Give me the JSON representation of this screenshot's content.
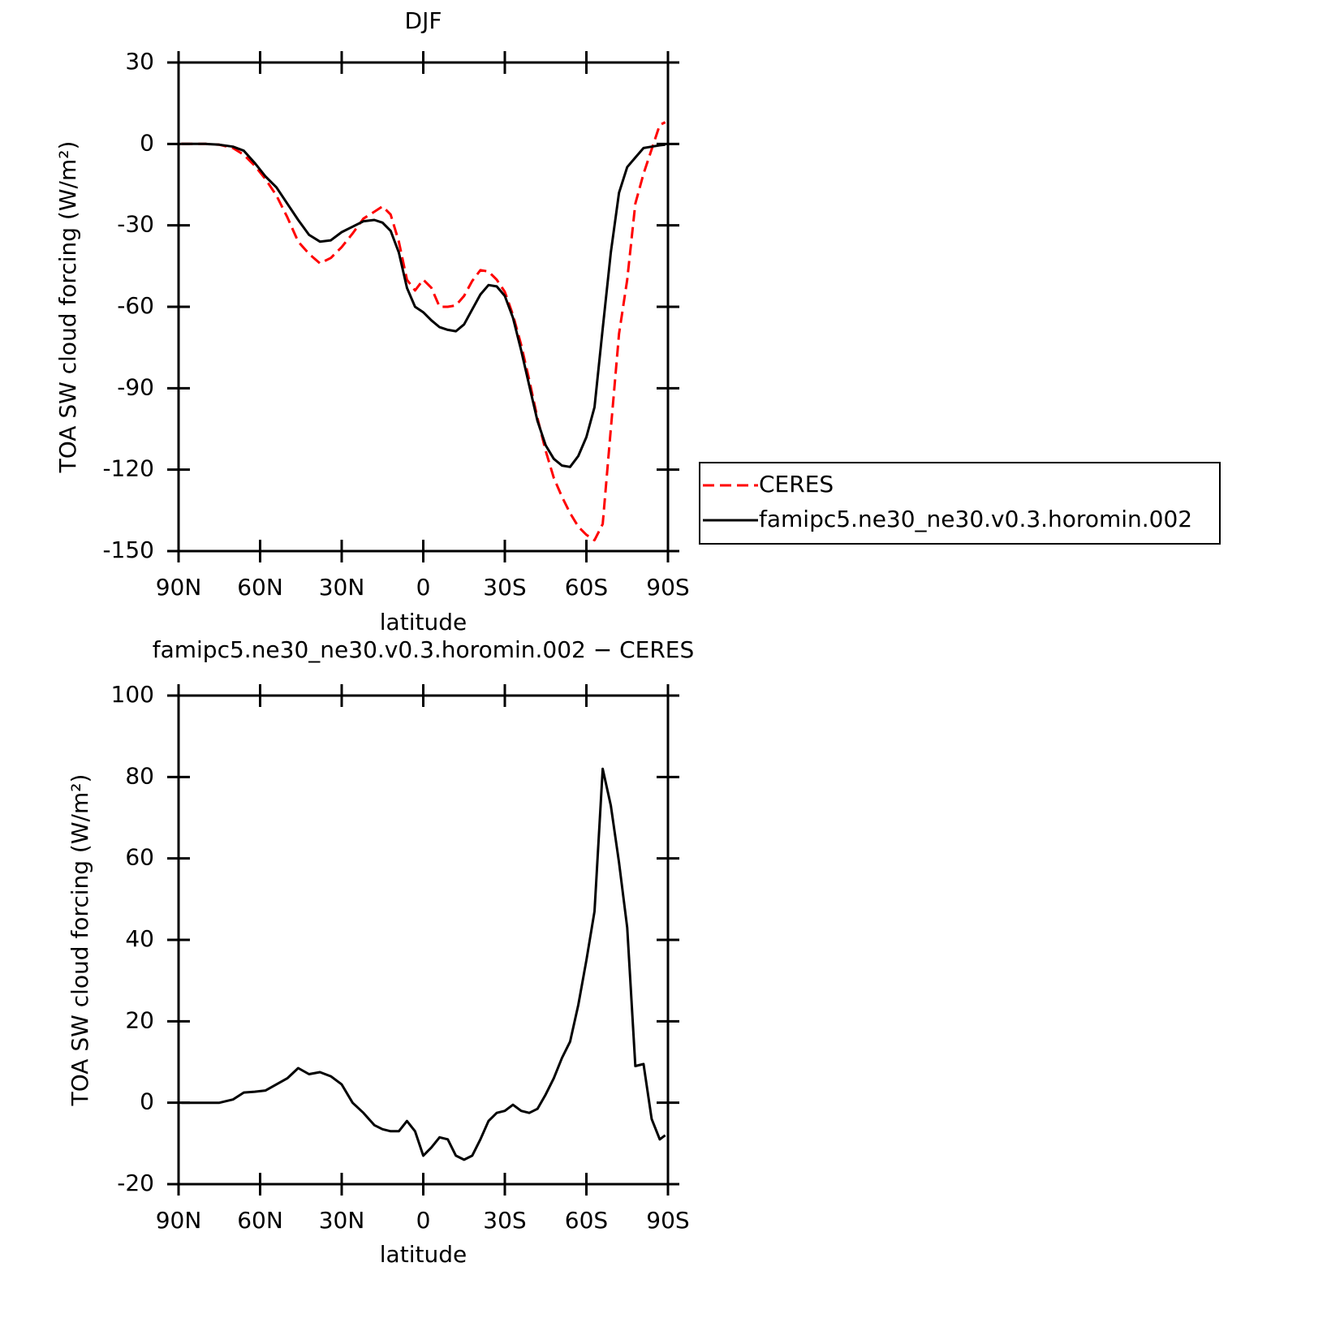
{
  "chart_data": [
    {
      "type": "line",
      "title": "DJF",
      "xlabel": "latitude",
      "ylabel": "TOA SW cloud forcing (W/m²)",
      "x": [
        89,
        85,
        80,
        75,
        70,
        66,
        62,
        58,
        54,
        50,
        46,
        42,
        38,
        34,
        30,
        26,
        22,
        18,
        15,
        12,
        9,
        6,
        3,
        0,
        -3,
        -6,
        -9,
        -12,
        -15,
        -18,
        -21,
        -24,
        -27,
        -30,
        -33,
        -36,
        -39,
        -42,
        -45,
        -48,
        -51,
        -54,
        -57,
        -60,
        -63,
        -66,
        -69,
        -72,
        -75,
        -78,
        -81,
        -84,
        -87,
        -89
      ],
      "series": [
        {
          "name": "CERES",
          "color": "#ff0000",
          "line_style": "dashed",
          "values": [
            0,
            0,
            0,
            -0.3,
            -1.5,
            -4,
            -8,
            -13,
            -19,
            -27,
            -36,
            -40.5,
            -44,
            -42,
            -38,
            -33,
            -27.5,
            -25,
            -23,
            -26,
            -36,
            -50,
            -54,
            -50,
            -53,
            -60,
            -60,
            -59.5,
            -56,
            -50.5,
            -46.5,
            -47,
            -50,
            -54.5,
            -63,
            -74,
            -87,
            -101,
            -113,
            -123,
            -130,
            -136,
            -141,
            -144,
            -146,
            -140,
            -105,
            -70,
            -50,
            -22,
            -11,
            -2,
            7,
            8
          ]
        },
        {
          "name": "famipc5.ne30_ne30.v0.3.horomin.002",
          "color": "#000000",
          "line_style": "solid",
          "values": [
            0,
            0,
            0,
            -0.3,
            -1,
            -2.5,
            -7,
            -12,
            -16,
            -22,
            -28,
            -33.5,
            -36,
            -35.5,
            -32.5,
            -30.5,
            -28.5,
            -28,
            -29,
            -32,
            -40,
            -53,
            -60,
            -62,
            -65,
            -67.5,
            -68.5,
            -69,
            -66.5,
            -61,
            -55.5,
            -52,
            -52.5,
            -56,
            -64,
            -76,
            -89,
            -102,
            -111,
            -116,
            -118.5,
            -119,
            -115,
            -108,
            -97,
            -68,
            -40,
            -18,
            -8.5,
            -5,
            -1.5,
            -1,
            -0.5,
            -0.3
          ]
        }
      ],
      "xlim": [
        90,
        -90
      ],
      "xticks": [
        {
          "value": 90,
          "label": "90N"
        },
        {
          "value": 60,
          "label": "60N"
        },
        {
          "value": 30,
          "label": "30N"
        },
        0,
        {
          "value": -30,
          "label": "30S"
        },
        {
          "value": -60,
          "label": "60S"
        },
        {
          "value": -90,
          "label": "90S"
        }
      ],
      "ylim": [
        -150,
        30
      ],
      "yticks": [
        30,
        0,
        -30,
        -60,
        -90,
        -120,
        -150
      ],
      "legend": "right"
    },
    {
      "type": "line",
      "title": "famipc5.ne30_ne30.v0.3.horomin.002 − CERES",
      "xlabel": "latitude",
      "ylabel": "TOA SW cloud forcing (W/m²)",
      "x": [
        89,
        85,
        80,
        75,
        70,
        66,
        62,
        58,
        54,
        50,
        46,
        42,
        38,
        34,
        30,
        26,
        22,
        18,
        15,
        12,
        9,
        6,
        3,
        0,
        -3,
        -6,
        -9,
        -12,
        -15,
        -18,
        -21,
        -24,
        -27,
        -30,
        -33,
        -36,
        -39,
        -42,
        -45,
        -48,
        -51,
        -54,
        -57,
        -60,
        -63,
        -66,
        -69,
        -72,
        -75,
        -78,
        -81,
        -84,
        -87,
        -89
      ],
      "series": [
        {
          "color": "#000000",
          "line_style": "solid",
          "values": [
            0,
            0,
            0,
            0,
            0.8,
            2.5,
            2.7,
            3,
            4.5,
            6,
            8.5,
            7,
            7.5,
            6.5,
            4.5,
            0,
            -2.5,
            -5.5,
            -6.5,
            -7,
            -7,
            -4.5,
            -7,
            -13,
            -11,
            -8.5,
            -9,
            -13,
            -14,
            -13,
            -9,
            -4.5,
            -2.5,
            -2,
            -0.5,
            -2,
            -2.5,
            -1.5,
            2,
            6,
            11,
            15,
            24,
            35,
            47,
            82,
            73,
            59,
            43,
            9,
            9.5,
            -4,
            -9,
            -8
          ]
        }
      ],
      "xlim": [
        90,
        -90
      ],
      "xticks": [
        {
          "value": 90,
          "label": "90N"
        },
        {
          "value": 60,
          "label": "60N"
        },
        {
          "value": 30,
          "label": "30N"
        },
        0,
        {
          "value": -30,
          "label": "30S"
        },
        {
          "value": -60,
          "label": "60S"
        },
        {
          "value": -90,
          "label": "90S"
        }
      ],
      "ylim": [
        -20,
        100
      ],
      "yticks": [
        100,
        80,
        60,
        40,
        20,
        0,
        -20
      ]
    }
  ]
}
